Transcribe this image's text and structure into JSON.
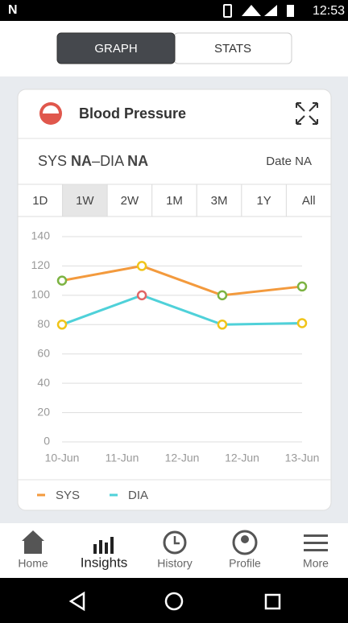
{
  "status_bar": {
    "time": "12:53"
  },
  "tabs": [
    {
      "label": "GRAPH",
      "selected": true
    },
    {
      "label": "STATS",
      "selected": false
    }
  ],
  "card": {
    "title": "Blood Pressure",
    "reading": {
      "sys_label": "SYS",
      "sys_value": "NA",
      "separator": "–",
      "dia_label": "DIA",
      "dia_value": "NA",
      "date": "Date NA"
    },
    "ranges": [
      {
        "label": "1D",
        "selected": false
      },
      {
        "label": "1W",
        "selected": true
      },
      {
        "label": "2W",
        "selected": false
      },
      {
        "label": "1M",
        "selected": false
      },
      {
        "label": "3M",
        "selected": false
      },
      {
        "label": "1Y",
        "selected": false
      },
      {
        "label": "All",
        "selected": false
      }
    ]
  },
  "chart_data": {
    "type": "line",
    "x": [
      0,
      1.33,
      2.67,
      4
    ],
    "xlim": [
      0,
      4
    ],
    "xticks": [
      {
        "value": 0,
        "label": "10-Jun"
      },
      {
        "value": 1,
        "label": "11-Jun"
      },
      {
        "value": 2,
        "label": "12-Jun"
      },
      {
        "value": 3,
        "label": "12-Jun"
      },
      {
        "value": 4,
        "label": "13-Jun"
      }
    ],
    "ylim": [
      0,
      140
    ],
    "yticks": [
      0,
      20,
      40,
      60,
      80,
      100,
      120,
      140
    ],
    "grid": true,
    "series": [
      {
        "name": "SYS",
        "color": "#f39a3d",
        "values": [
          110,
          120,
          100,
          106
        ],
        "marker_colors": [
          "#7cb342",
          "#f0c419",
          "#7cb342",
          "#7cb342"
        ]
      },
      {
        "name": "DIA",
        "color": "#4fd1d9",
        "values": [
          80,
          100,
          80,
          81
        ],
        "marker_colors": [
          "#f0c419",
          "#e06666",
          "#f0c419",
          "#f0c419"
        ]
      }
    ]
  },
  "nav": [
    {
      "label": "Home",
      "active": false
    },
    {
      "label": "Insights",
      "active": true
    },
    {
      "label": "History",
      "active": false
    },
    {
      "label": "Profile",
      "active": false
    },
    {
      "label": "More",
      "active": false
    }
  ]
}
